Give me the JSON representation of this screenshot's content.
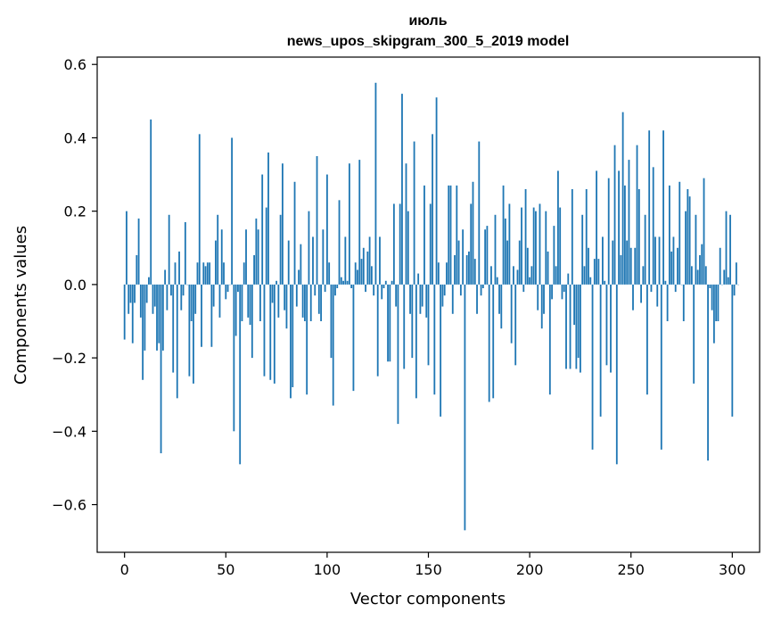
{
  "chart_data": {
    "type": "bar",
    "title": "июль",
    "subtitle": "news_upos_skipgram_300_5_2019 model",
    "xlabel": "Vector components",
    "ylabel": "Components values",
    "xlim": [
      -13.5,
      313.5
    ],
    "ylim": [
      -0.73,
      0.62
    ],
    "xticks": [
      0,
      50,
      100,
      150,
      200,
      250,
      300
    ],
    "xtick_labels": [
      "0",
      "50",
      "100",
      "150",
      "200",
      "250",
      "300"
    ],
    "yticks": [
      -0.6,
      -0.4,
      -0.2,
      0.0,
      0.2,
      0.4,
      0.6
    ],
    "ytick_labels": [
      "−0.6",
      "−0.4",
      "−0.2",
      "0.0",
      "0.2",
      "0.4",
      "0.6"
    ],
    "bar_color": "#1f77b4",
    "grid": false,
    "legend": "none",
    "series": [
      {
        "values": [
          -0.15,
          0.2,
          -0.08,
          -0.05,
          -0.16,
          -0.05,
          0.08,
          0.18,
          -0.09,
          -0.26,
          -0.18,
          -0.05,
          0.02,
          0.45,
          -0.08,
          -0.06,
          -0.18,
          -0.16,
          -0.46,
          -0.18,
          0.04,
          -0.07,
          0.19,
          -0.03,
          -0.24,
          0.06,
          -0.31,
          0.09,
          -0.07,
          -0.03,
          0.17,
          0.0,
          -0.25,
          -0.1,
          -0.27,
          -0.08,
          0.06,
          0.41,
          -0.17,
          0.06,
          0.05,
          0.06,
          0.06,
          -0.17,
          -0.06,
          0.12,
          0.19,
          -0.09,
          0.15,
          0.06,
          -0.04,
          -0.02,
          0.0,
          0.4,
          -0.4,
          -0.14,
          -0.02,
          -0.49,
          -0.1,
          0.06,
          0.15,
          -0.09,
          -0.11,
          -0.2,
          0.08,
          0.18,
          0.15,
          -0.1,
          0.3,
          -0.25,
          0.21,
          0.36,
          -0.26,
          -0.05,
          -0.27,
          0.01,
          -0.09,
          0.19,
          0.33,
          -0.07,
          -0.12,
          0.12,
          -0.31,
          -0.28,
          0.28,
          -0.06,
          0.04,
          0.11,
          -0.09,
          -0.1,
          -0.3,
          0.2,
          -0.1,
          0.13,
          -0.03,
          0.35,
          -0.08,
          -0.1,
          0.15,
          -0.02,
          0.3,
          0.06,
          -0.2,
          -0.33,
          -0.03,
          -0.01,
          0.23,
          0.02,
          0.01,
          0.13,
          0.01,
          0.33,
          -0.01,
          -0.29,
          0.06,
          0.04,
          0.34,
          0.07,
          0.1,
          -0.02,
          0.09,
          0.13,
          0.05,
          -0.03,
          0.55,
          -0.25,
          0.13,
          -0.04,
          -0.01,
          0.01,
          -0.21,
          -0.21,
          0.01,
          0.22,
          -0.06,
          -0.38,
          0.22,
          0.52,
          -0.23,
          0.33,
          0.2,
          -0.08,
          -0.2,
          0.39,
          -0.31,
          0.03,
          -0.08,
          -0.06,
          0.27,
          -0.09,
          -0.22,
          0.22,
          0.41,
          -0.3,
          0.51,
          0.06,
          -0.36,
          -0.06,
          -0.03,
          0.06,
          0.27,
          0.27,
          -0.08,
          0.08,
          0.27,
          0.12,
          -0.03,
          0.15,
          -0.67,
          0.08,
          0.09,
          0.22,
          0.28,
          0.07,
          -0.08,
          0.39,
          -0.03,
          -0.01,
          0.15,
          0.16,
          -0.32,
          0.05,
          -0.31,
          0.19,
          0.02,
          -0.08,
          -0.12,
          0.27,
          0.18,
          0.12,
          0.22,
          -0.16,
          0.05,
          -0.22,
          0.04,
          0.12,
          0.21,
          -0.02,
          0.26,
          0.1,
          0.02,
          0.05,
          0.21,
          0.2,
          -0.07,
          0.22,
          -0.12,
          -0.08,
          0.2,
          0.09,
          -0.3,
          -0.04,
          0.16,
          0.05,
          0.31,
          0.21,
          -0.04,
          -0.02,
          -0.23,
          0.03,
          -0.23,
          0.26,
          -0.11,
          -0.23,
          -0.2,
          -0.24,
          0.19,
          0.05,
          0.26,
          0.1,
          0.02,
          -0.45,
          0.07,
          0.31,
          0.07,
          -0.36,
          0.13,
          0.01,
          -0.22,
          0.29,
          -0.24,
          0.12,
          0.38,
          -0.49,
          0.31,
          0.08,
          0.47,
          0.27,
          0.12,
          0.34,
          0.1,
          -0.07,
          0.1,
          0.38,
          0.26,
          -0.05,
          0.05,
          0.19,
          -0.3,
          0.42,
          -0.02,
          0.32,
          0.13,
          -0.06,
          0.13,
          -0.45,
          0.42,
          0.01,
          -0.1,
          0.27,
          0.09,
          0.13,
          -0.02,
          0.1,
          0.28,
          0.0,
          -0.1,
          0.2,
          0.26,
          0.24,
          0.05,
          -0.27,
          0.19,
          0.04,
          0.08,
          0.11,
          0.29,
          0.05,
          -0.48,
          -0.01,
          -0.07,
          -0.16,
          -0.1,
          -0.1,
          0.1,
          0.0,
          0.04,
          0.2,
          0.02,
          0.19,
          -0.36,
          -0.03,
          0.06,
          0.0
        ]
      }
    ]
  }
}
